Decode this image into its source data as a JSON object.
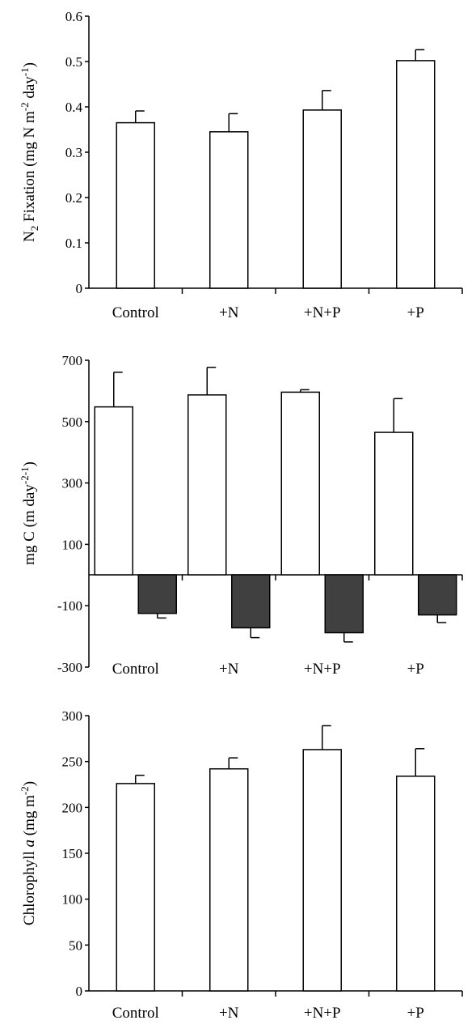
{
  "chart_data": [
    {
      "type": "bar",
      "panel": "top",
      "categories": [
        "Control",
        "+N",
        "+N+P",
        "+P"
      ],
      "series": [
        {
          "values": [
            0.365,
            0.345,
            0.393,
            0.502
          ],
          "errors": [
            0.026,
            0.04,
            0.043,
            0.024
          ],
          "fill": "#ffffff"
        }
      ],
      "ylabel": {
        "prefix": "N",
        "sub": "2",
        "mid": " Fixation (mg N m",
        "sup1": "-2",
        "mid2": " day",
        "sup2": "-1",
        "end": ")"
      },
      "ylim": [
        0,
        0.6
      ],
      "yticks": [
        0,
        0.1,
        0.2,
        0.3,
        0.4,
        0.5,
        0.6
      ],
      "ytick_labels": [
        "0",
        "0.1",
        "0.2",
        "0.3",
        "0.4",
        "0.5",
        "0.6"
      ],
      "grid": false
    },
    {
      "type": "bar",
      "panel": "middle",
      "categories": [
        "Control",
        "+N",
        "+N+P",
        "+P"
      ],
      "series": [
        {
          "values": [
            548,
            587,
            596,
            465
          ],
          "errors": [
            113,
            90,
            8,
            110
          ],
          "fill": "#ffffff"
        },
        {
          "values": [
            -125,
            -172,
            -188,
            -130
          ],
          "errors": [
            15,
            32,
            30,
            25
          ],
          "fill": "#404040"
        }
      ],
      "ylabel": {
        "prefix": "mg C (m",
        "sup1": "-2",
        "mid": " day",
        "sup2": "-1",
        "end": ")"
      },
      "ylim": [
        -300,
        700
      ],
      "yticks": [
        -300,
        -100,
        100,
        300,
        500,
        700
      ],
      "ytick_labels": [
        "-300",
        "-100",
        "100",
        "300",
        "500",
        "700"
      ],
      "grid": false
    },
    {
      "type": "bar",
      "panel": "bottom",
      "categories": [
        "Control",
        "+N",
        "+N+P",
        "+P"
      ],
      "series": [
        {
          "values": [
            226,
            242,
            263,
            234
          ],
          "errors": [
            9,
            12,
            26,
            30
          ],
          "fill": "#ffffff"
        }
      ],
      "ylabel": {
        "prefix": "Chlorophyll ",
        "italic": "a",
        "mid": " (mg m",
        "sup1": "-2",
        "end": ")"
      },
      "ylim": [
        0,
        300
      ],
      "yticks": [
        0,
        50,
        100,
        150,
        200,
        250,
        300
      ],
      "ytick_labels": [
        "0",
        "50",
        "100",
        "150",
        "200",
        "250",
        "300"
      ],
      "grid": false
    }
  ]
}
